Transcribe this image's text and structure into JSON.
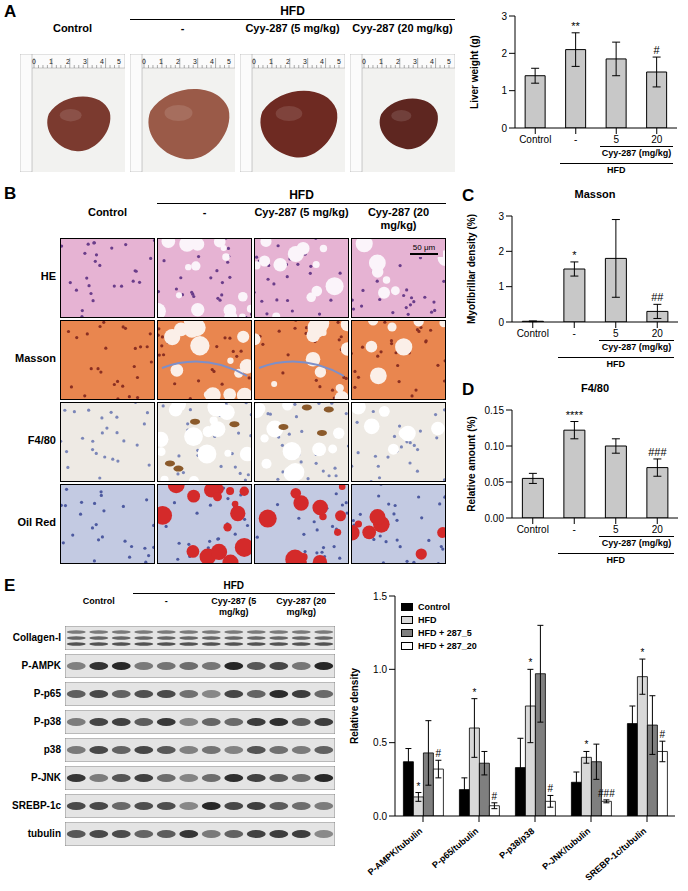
{
  "chart_data": [
    {
      "type": "bar",
      "y_label": "Liver weight (g)",
      "categories": [
        "Control",
        "-",
        "5",
        "20"
      ],
      "values": [
        1.4,
        2.1,
        1.85,
        1.5
      ],
      "errors": [
        0.2,
        0.45,
        0.45,
        0.4
      ],
      "significance": [
        null,
        "**",
        null,
        "#"
      ],
      "groups": [
        {
          "label": "Cyy-287 (mg/kg)",
          "categories": [
            "5",
            "20"
          ]
        },
        {
          "label": "HFD",
          "categories": [
            "-",
            "5",
            "20"
          ]
        }
      ],
      "color": "#c8c8c8",
      "ylim": [
        0,
        3
      ],
      "yticks": [
        0,
        1,
        2,
        3
      ]
    },
    {
      "type": "bar",
      "title": "Masson",
      "y_label": "Myofibrillar density (%)",
      "categories": [
        "Control",
        "-",
        "5",
        "20"
      ],
      "values": [
        0.02,
        1.5,
        1.8,
        0.3
      ],
      "errors": [
        0.01,
        0.2,
        1.1,
        0.2
      ],
      "significance": [
        null,
        "*",
        null,
        "##"
      ],
      "groups": [
        {
          "label": "Cyy-287 (mg/kg)",
          "categories": [
            "5",
            "20"
          ]
        },
        {
          "label": "HFD",
          "categories": [
            "-",
            "5",
            "20"
          ]
        }
      ],
      "color": "#c8c8c8",
      "ylim": [
        0,
        3
      ],
      "yticks": [
        0,
        1,
        2,
        3
      ]
    },
    {
      "type": "bar",
      "title": "F4/80",
      "y_label": "Relative amount (%)",
      "categories": [
        "Control",
        "-",
        "5",
        "20"
      ],
      "values": [
        0.055,
        0.122,
        0.1,
        0.07
      ],
      "errors": [
        0.007,
        0.012,
        0.01,
        0.012
      ],
      "significance": [
        null,
        "****",
        null,
        "###"
      ],
      "groups": [
        {
          "label": "Cyy-287 (mg/kg)",
          "categories": [
            "5",
            "20"
          ]
        },
        {
          "label": "HFD",
          "categories": [
            "-",
            "5",
            "20"
          ]
        }
      ],
      "color": "#c8c8c8",
      "ylim": [
        0,
        0.15
      ],
      "yticks": [
        {
          "value": 0,
          "label": "0.00"
        },
        0.05,
        {
          "value": 0.1,
          "label": "0.10"
        },
        0.15
      ]
    },
    {
      "type": "bar",
      "y_label": "Relative density",
      "categories": [
        "P-AMPK/tubulin",
        "P-p65/tubulin",
        "P-p38/p38",
        "P-JNK/tubulin",
        "SREBP-1c/tubulin"
      ],
      "series": [
        {
          "name": "Control",
          "color": "#000000",
          "values": [
            0.37,
            0.18,
            0.33,
            0.23,
            0.63
          ],
          "errors": [
            0.09,
            0.08,
            0.2,
            0.07,
            0.12
          ],
          "significance": [
            null,
            null,
            null,
            null,
            null
          ]
        },
        {
          "name": "HFD",
          "color": "#d9d9d9",
          "values": [
            0.13,
            0.6,
            0.75,
            0.4,
            0.95
          ],
          "errors": [
            0.03,
            0.2,
            0.25,
            0.04,
            0.12
          ],
          "significance": [
            "*",
            "*",
            "*",
            "*",
            "*"
          ]
        },
        {
          "name": "HFD + 287_5",
          "color": "#7f7f7f",
          "values": [
            0.43,
            0.36,
            0.97,
            0.37,
            0.62
          ],
          "errors": [
            0.22,
            0.08,
            0.33,
            0.12,
            0.2
          ],
          "significance": [
            null,
            null,
            null,
            null,
            null
          ]
        },
        {
          "name": "HFD + 287_20",
          "color": "#ffffff",
          "values": [
            0.32,
            0.07,
            0.1,
            0.1,
            0.44
          ],
          "errors": [
            0.06,
            0.02,
            0.04,
            0.01,
            0.07
          ],
          "significance": [
            "#",
            "#",
            "#",
            "###",
            "#"
          ]
        }
      ],
      "ylim": [
        0,
        1.5
      ],
      "yticks": [
        {
          "value": 0,
          "label": "0.0"
        },
        0.5,
        {
          "value": 1,
          "label": "1.0"
        },
        1.5
      ],
      "legend": "top-left"
    }
  ],
  "panels": {
    "A": {
      "letter": "A",
      "group_head": "HFD",
      "column_heads": [
        "Control",
        "-",
        "Cyy-287 (5 mg/kg)",
        "Cyy-287 (20 mg/kg)"
      ],
      "ruler_labels": [
        "0",
        "1",
        "2",
        "3",
        "4",
        "5"
      ]
    },
    "B": {
      "letter": "B",
      "group_head": "HFD",
      "column_heads": [
        "Control",
        "-",
        "Cyy-287 (5 mg/kg)",
        "Cyy-287 (20 mg/kg)"
      ],
      "row_labels": [
        "HE",
        "Masson",
        "F4/80",
        "Oil Red"
      ],
      "scale_bar": "50 μm"
    },
    "C": {
      "letter": "C"
    },
    "D": {
      "letter": "D"
    },
    "E": {
      "letter": "E",
      "group_head": "HFD",
      "column_heads": [
        "Control",
        "-",
        "Cyy-287 (5 mg/kg)",
        "Cyy-287 (20 mg/kg)"
      ],
      "row_labels": [
        "Collagen-I",
        "P-AMPK",
        "P-p65",
        "P-p38",
        "p38",
        "P-JNK",
        "SREBP-1c",
        "tubulin"
      ]
    }
  }
}
